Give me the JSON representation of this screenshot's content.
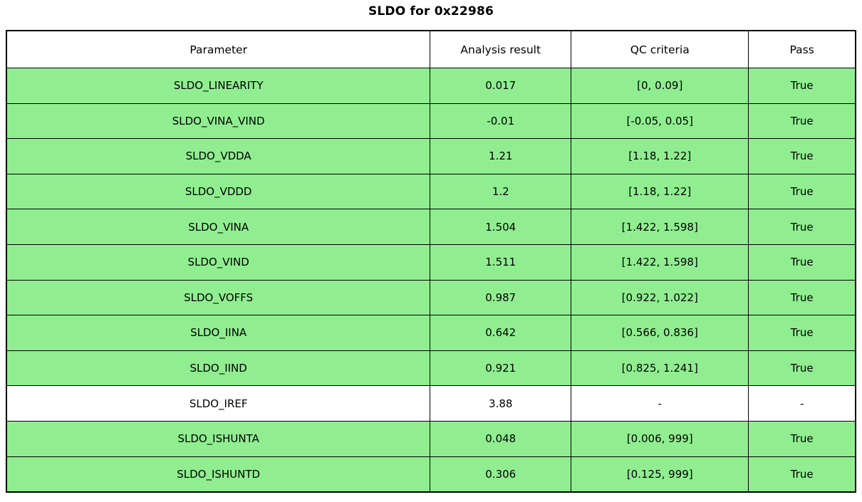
{
  "title": "SLDO for 0x22986",
  "colors": {
    "row_pass_green": "#90EE90",
    "row_neutral_white": "#ffffff",
    "border": "#000000",
    "text": "#000000"
  },
  "table": {
    "headers": [
      "Parameter",
      "Analysis result",
      "QC criteria",
      "Pass"
    ],
    "rows": [
      {
        "param": "SLDO_LINEARITY",
        "result": "0.017",
        "criteria": "[0, 0.09]",
        "pass": "True",
        "bg": "green"
      },
      {
        "param": "SLDO_VINA_VIND",
        "result": "-0.01",
        "criteria": "[-0.05, 0.05]",
        "pass": "True",
        "bg": "green"
      },
      {
        "param": "SLDO_VDDA",
        "result": "1.21",
        "criteria": "[1.18, 1.22]",
        "pass": "True",
        "bg": "green"
      },
      {
        "param": "SLDO_VDDD",
        "result": "1.2",
        "criteria": "[1.18, 1.22]",
        "pass": "True",
        "bg": "green"
      },
      {
        "param": "SLDO_VINA",
        "result": "1.504",
        "criteria": "[1.422, 1.598]",
        "pass": "True",
        "bg": "green"
      },
      {
        "param": "SLDO_VIND",
        "result": "1.511",
        "criteria": "[1.422, 1.598]",
        "pass": "True",
        "bg": "green"
      },
      {
        "param": "SLDO_VOFFS",
        "result": "0.987",
        "criteria": "[0.922, 1.022]",
        "pass": "True",
        "bg": "green"
      },
      {
        "param": "SLDO_IINA",
        "result": "0.642",
        "criteria": "[0.566, 0.836]",
        "pass": "True",
        "bg": "green"
      },
      {
        "param": "SLDO_IIND",
        "result": "0.921",
        "criteria": "[0.825, 1.241]",
        "pass": "True",
        "bg": "green"
      },
      {
        "param": "SLDO_IREF",
        "result": "3.88",
        "criteria": "-",
        "pass": "-",
        "bg": "white"
      },
      {
        "param": "SLDO_ISHUNTA",
        "result": "0.048",
        "criteria": "[0.006, 999]",
        "pass": "True",
        "bg": "green"
      },
      {
        "param": "SLDO_ISHUNTD",
        "result": "0.306",
        "criteria": "[0.125, 999]",
        "pass": "True",
        "bg": "green"
      }
    ]
  },
  "chart_data": {
    "type": "table",
    "title": "SLDO for 0x22986",
    "columns": [
      "Parameter",
      "Analysis result",
      "QC criteria",
      "Pass"
    ],
    "rows": [
      [
        "SLDO_LINEARITY",
        0.017,
        "[0, 0.09]",
        "True"
      ],
      [
        "SLDO_VINA_VIND",
        -0.01,
        "[-0.05, 0.05]",
        "True"
      ],
      [
        "SLDO_VDDA",
        1.21,
        "[1.18, 1.22]",
        "True"
      ],
      [
        "SLDO_VDDD",
        1.2,
        "[1.18, 1.22]",
        "True"
      ],
      [
        "SLDO_VINA",
        1.504,
        "[1.422, 1.598]",
        "True"
      ],
      [
        "SLDO_VIND",
        1.511,
        "[1.422, 1.598]",
        "True"
      ],
      [
        "SLDO_VOFFS",
        0.987,
        "[0.922, 1.022]",
        "True"
      ],
      [
        "SLDO_IINA",
        0.642,
        "[0.566, 0.836]",
        "True"
      ],
      [
        "SLDO_IIND",
        0.921,
        "[0.825, 1.241]",
        "True"
      ],
      [
        "SLDO_IREF",
        3.88,
        "-",
        "-"
      ],
      [
        "SLDO_ISHUNTA",
        0.048,
        "[0.006, 999]",
        "True"
      ],
      [
        "SLDO_ISHUNTD",
        0.306,
        "[0.125, 999]",
        "True"
      ]
    ],
    "row_highlight": [
      "green",
      "green",
      "green",
      "green",
      "green",
      "green",
      "green",
      "green",
      "green",
      "white",
      "green",
      "green"
    ],
    "legend_position": "none",
    "grid": true
  }
}
